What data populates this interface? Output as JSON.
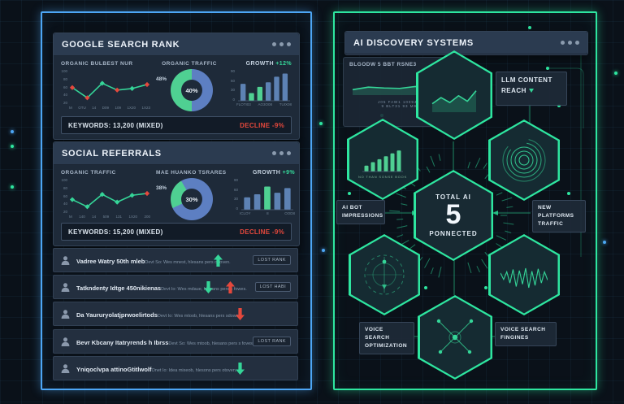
{
  "colors": {
    "accent_blue": "#4da6f5",
    "accent_green": "#2ee6a0",
    "red": "#e5483c",
    "bar_blue": "#5d82b4",
    "donut_blue": "#5d7fc2",
    "donut_green": "#4fd092"
  },
  "left_panel": {
    "google_card": {
      "title": "GOOGLE SEARCH RANK",
      "rank_chart": {
        "label": "ORGANIC BULBEST NUR",
        "y_ticks": [
          "100",
          "80",
          "60",
          "40",
          "20"
        ],
        "x_ticks": [
          "M",
          "OTU",
          "14",
          "D09",
          "109",
          "1X20",
          "1X23"
        ],
        "values": [
          48,
          15,
          62,
          40,
          45,
          58
        ],
        "marker_colors": [
          "#e5483c",
          "#e5483c",
          "#35d598",
          "#e5483c",
          "#35d598",
          "#e5483c"
        ],
        "line_color": "#35d598"
      },
      "donut": {
        "label": "ORGANIC TRAFFIC",
        "side_value": "48%",
        "center_value": "40%",
        "green_start": 180,
        "green_deg": 180
      },
      "growth": {
        "label": "GROWTH",
        "value": "+12%"
      },
      "bar_chart": {
        "y_ticks": [
          "90",
          "60",
          "30",
          "0"
        ],
        "x_ticks": [
          "FLOTI03",
          "AO3O08",
          "TUIX08"
        ],
        "values": [
          55,
          25,
          45,
          60,
          78,
          88
        ],
        "colors": [
          "#5d82b4",
          "#4fd092",
          "#4fd092",
          "#5d82b4",
          "#5d82b4",
          "#5d82b4"
        ]
      },
      "keywords": "KEYWORDS: 13,200 (MIXED)",
      "decline": "DECLINE -9%"
    },
    "social_card": {
      "title": "SOCIAL REFERRALS",
      "rank_chart": {
        "label": "ORGANIC TRAFFIC",
        "y_ticks": [
          "100",
          "80",
          "60",
          "40",
          "20"
        ],
        "x_ticks": [
          "M",
          "140",
          "14",
          "509",
          "131",
          "1X20",
          "200"
        ],
        "values": [
          38,
          15,
          55,
          30,
          52,
          58
        ],
        "marker_colors": [
          "#35d598",
          "#35d598",
          "#35d598",
          "#35d598",
          "#35d598",
          "#e5483c"
        ],
        "line_color": "#35d598"
      },
      "donut": {
        "label": "MAE HUANKO TSRARES",
        "side_value": "38%",
        "center_value": "30%",
        "green_start": 245,
        "green_deg": 85
      },
      "growth": {
        "label": "GROWTH",
        "value": "+9%"
      },
      "bar_chart": {
        "y_ticks": [
          "90",
          "60",
          "30",
          "0"
        ],
        "x_ticks": [
          "ICLOY",
          "8",
          "OOD8"
        ],
        "values": [
          40,
          50,
          75,
          55,
          70
        ],
        "colors": [
          "#5d82b4",
          "#5d82b4",
          "#4fd092",
          "#5d82b4",
          "#5d82b4"
        ]
      },
      "keywords": "KEYWORDS: 15,200 (MIXED)",
      "decline": "DECLINE -9%"
    },
    "referral_rows": [
      {
        "title": "Vadree Watry 50th mleb",
        "subtitle": "Devt So: Wes mnest, hlesans pers o foven.",
        "badge": "LOST RANK"
      },
      {
        "title": "Tatkndenty Idtge 450nikienas",
        "subtitle": "Devt Io: Wes mdaue, hlesans pers s fowes.",
        "badge": "LOST HABI"
      },
      {
        "title": "Da Yaururyolatjprwoelirtods",
        "subtitle": "Devt Io: Wes mtoob, hlesans pers sdown.",
        "badge": ""
      },
      {
        "title": "Bevr Kbcany Itatryrends h Ibrss",
        "subtitle": "Devt So: Wes mtoob, hlesans pers s foves.",
        "badge": "LOST RANK"
      },
      {
        "title": "Yniqoclvpa attinoGtitlwolf",
        "subtitle": "Onet Io: Idea mixeob, hlesons pers otoven.",
        "badge": ""
      }
    ]
  },
  "right_panel": {
    "title": "AI DISCOVERY SYSTEMS",
    "mini_chart": {
      "label": "BLGODW 5 BBT RSNE3",
      "values": [
        18,
        30,
        26,
        24,
        33,
        28,
        40
      ],
      "caption1": "J05 FAW1 100945B",
      "caption2": "9 BLT31 93 M93"
    },
    "hex_line_chart": {
      "values": [
        22,
        42,
        26,
        48,
        30,
        64
      ],
      "line_color": "#35d598"
    },
    "hex_bar_chart": {
      "values": [
        20,
        32,
        42,
        52,
        62,
        72
      ],
      "caption": "NO THAN SONSE BOOK"
    },
    "waveform": [
      3,
      8,
      5,
      14,
      9,
      20,
      7,
      16,
      11,
      22,
      6,
      18,
      10,
      14,
      5,
      9
    ],
    "llm_label": "LLM CONTENT REACH",
    "ai_bot_label": "AI BOT IMPRESSIONS",
    "new_platforms_label": "NEW PLATFORMS TRAFFIC",
    "voice_opt_label": "VOICE SEARCH OPTIMIZATION",
    "voice_find_label": "VOICE SEARCH FINGINES",
    "center": {
      "top": "TOTAL AI",
      "value": "5",
      "bottom": "PONNECTED"
    }
  }
}
